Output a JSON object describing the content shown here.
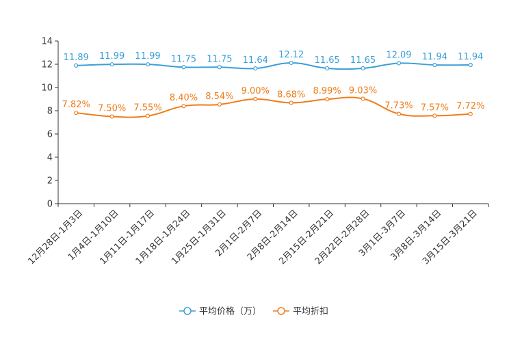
{
  "chart_data": {
    "type": "line",
    "categories": [
      "12月28日-1月3日",
      "1月4日-1月10日",
      "1月11日-1月17日",
      "1月18日-1月24日",
      "1月25日-1月31日",
      "2月1日-2月7日",
      "2月8日-2月14日",
      "2月15日-2月21日",
      "2月22日-2月28日",
      "3月1日-3月7日",
      "3月8日-3月14日",
      "3月15日-3月21日"
    ],
    "ylim": [
      0,
      14
    ],
    "yticks": [
      0,
      2,
      4,
      6,
      8,
      10,
      12,
      14
    ],
    "series": [
      {
        "name": "平均价格（万）",
        "color": "#3a9fd8",
        "values": [
          11.89,
          11.99,
          11.99,
          11.75,
          11.75,
          11.64,
          12.12,
          11.65,
          11.65,
          12.09,
          11.94,
          11.94
        ],
        "labels": [
          "11.89",
          "11.99",
          "11.99",
          "11.75",
          "11.75",
          "11.64",
          "12.12",
          "11.65",
          "11.65",
          "12.09",
          "11.94",
          "11.94"
        ]
      },
      {
        "name": "平均折扣",
        "color": "#f07c1a",
        "values": [
          7.82,
          7.5,
          7.55,
          8.4,
          8.54,
          9.0,
          8.68,
          8.99,
          9.03,
          7.73,
          7.57,
          7.72
        ],
        "labels": [
          "7.82%",
          "7.50%",
          "7.55%",
          "8.40%",
          "8.54%",
          "9.00%",
          "8.68%",
          "8.99%",
          "9.03%",
          "7.73%",
          "7.57%",
          "7.72%"
        ]
      }
    ],
    "legend_position": "bottom"
  }
}
